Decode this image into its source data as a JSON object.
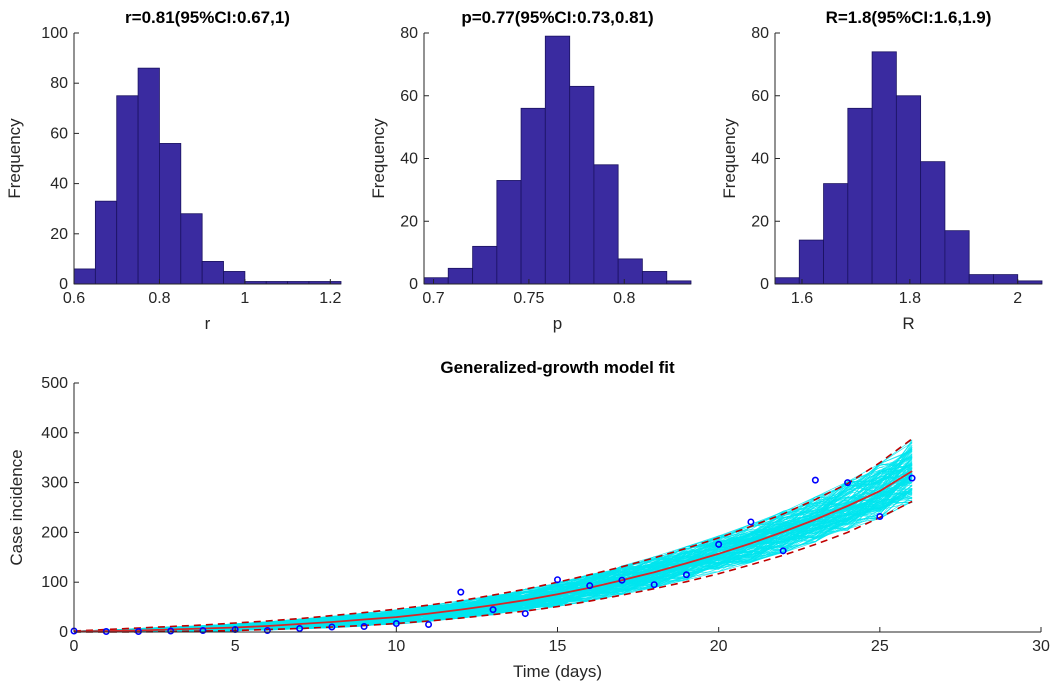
{
  "colors": {
    "bar_fill": "#3a2ba0",
    "bar_edge": "#1a1260",
    "axis": "#262626",
    "sim_lines": "#00e5ee",
    "fit_line": "#d62728",
    "ci_dash": "#c00000",
    "data_points": "#0000ff"
  },
  "chart_data": [
    {
      "type": "bar",
      "title": "r=0.81(95%CI:0.67,1)",
      "xlabel": "r",
      "ylabel": "Frequency",
      "xlim": [
        0.6,
        1.225
      ],
      "ylim": [
        0,
        100
      ],
      "xticks": [
        0.6,
        0.8,
        1,
        1.2
      ],
      "xtick_labels": [
        "0.6",
        "0.8",
        "1",
        "1.2"
      ],
      "yticks": [
        0,
        20,
        40,
        60,
        80,
        100
      ],
      "ytick_labels": [
        "0",
        "20",
        "40",
        "60",
        "80",
        "100"
      ],
      "bin_edges": [
        0.6,
        0.65,
        0.7,
        0.75,
        0.8,
        0.85,
        0.9,
        0.95,
        1.0,
        1.05,
        1.1,
        1.15,
        1.2,
        1.225
      ],
      "values": [
        6,
        33,
        75,
        86,
        56,
        28,
        9,
        5,
        1,
        1,
        1,
        1,
        1
      ]
    },
    {
      "type": "bar",
      "title": "p=0.77(95%CI:0.73,0.81)",
      "xlabel": "p",
      "ylabel": "Frequency",
      "xlim": [
        0.695,
        0.835
      ],
      "ylim": [
        0,
        80
      ],
      "xticks": [
        0.7,
        0.75,
        0.8
      ],
      "xtick_labels": [
        "0.7",
        "0.75",
        "0.8"
      ],
      "yticks": [
        0,
        20,
        40,
        60,
        80
      ],
      "ytick_labels": [
        "0",
        "20",
        "40",
        "60",
        "80"
      ],
      "bin_edges": [
        0.695,
        0.7077,
        0.7205,
        0.7332,
        0.7459,
        0.7586,
        0.7714,
        0.7841,
        0.7968,
        0.8095,
        0.8223,
        0.835
      ],
      "values": [
        2,
        5,
        12,
        33,
        56,
        79,
        63,
        38,
        8,
        4,
        1
      ]
    },
    {
      "type": "bar",
      "title": "R=1.8(95%CI:1.6,1.9)",
      "xlabel": "R",
      "ylabel": "Frequency",
      "xlim": [
        1.55,
        2.045
      ],
      "ylim": [
        0,
        80
      ],
      "xticks": [
        1.6,
        1.8,
        2
      ],
      "xtick_labels": [
        "1.6",
        "1.8",
        "2"
      ],
      "yticks": [
        0,
        20,
        40,
        60,
        80
      ],
      "ytick_labels": [
        "0",
        "20",
        "40",
        "60",
        "80"
      ],
      "bin_edges": [
        1.55,
        1.595,
        1.64,
        1.685,
        1.73,
        1.775,
        1.82,
        1.865,
        1.91,
        1.955,
        2.0,
        2.045
      ],
      "values": [
        2,
        14,
        32,
        56,
        74,
        60,
        39,
        17,
        3,
        3,
        1
      ]
    },
    {
      "type": "line",
      "title": "Generalized-growth model fit",
      "xlabel": "Time (days)",
      "ylabel": "Case incidence",
      "xlim": [
        0,
        30
      ],
      "ylim": [
        0,
        500
      ],
      "xticks": [
        0,
        5,
        10,
        15,
        20,
        25,
        30
      ],
      "xtick_labels": [
        "0",
        "5",
        "10",
        "15",
        "20",
        "25",
        "30"
      ],
      "yticks": [
        0,
        100,
        200,
        300,
        400,
        500
      ],
      "ytick_labels": [
        "0",
        "100",
        "200",
        "300",
        "400",
        "500"
      ],
      "x": [
        0,
        1,
        2,
        3,
        4,
        5,
        6,
        7,
        8,
        9,
        10,
        11,
        12,
        13,
        14,
        15,
        16,
        17,
        18,
        19,
        20,
        21,
        22,
        23,
        24,
        25,
        26
      ],
      "series": [
        {
          "values": [
            1,
            2,
            3,
            5,
            7,
            9,
            12,
            16,
            20,
            25,
            30,
            37,
            45,
            54,
            64,
            76,
            89,
            104,
            120,
            138,
            157,
            178,
            201,
            226,
            253,
            283,
            323
          ]
        },
        {
          "values": [
            2,
            5,
            8,
            11,
            14,
            18,
            22,
            27,
            33,
            39,
            46,
            54,
            63,
            74,
            86,
            100,
            115,
            131,
            149,
            168,
            189,
            212,
            237,
            266,
            298,
            340,
            388
          ]
        },
        {
          "values": [
            0,
            0,
            0,
            1,
            2,
            3,
            5,
            7,
            10,
            13,
            17,
            22,
            28,
            35,
            42,
            51,
            62,
            74,
            87,
            101,
            117,
            135,
            154,
            176,
            200,
            230,
            262
          ]
        },
        {
          "values": [
            2,
            1,
            1,
            2,
            3,
            5,
            3,
            7,
            10,
            11,
            17,
            15,
            80,
            45,
            37,
            105,
            93,
            104,
            95,
            115,
            176,
            221,
            163,
            305,
            300,
            232,
            309
          ]
        }
      ]
    }
  ]
}
